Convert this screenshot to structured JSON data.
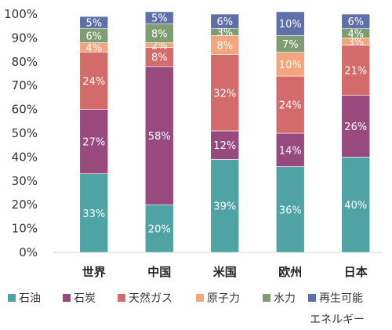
{
  "chart_data": {
    "type": "bar",
    "stacked": true,
    "percent": true,
    "categories": [
      "世界",
      "中国",
      "米国",
      "欧州",
      "日本"
    ],
    "ylim": [
      0,
      100
    ],
    "ytick_labels": [
      "0%",
      "10%",
      "20%",
      "30%",
      "40%",
      "50%",
      "60%",
      "70%",
      "80%",
      "90%",
      "100%"
    ],
    "grid": false,
    "legend_position": "bottom",
    "series": [
      {
        "name": "石油",
        "color": "#4fa3a5",
        "values": [
          33,
          20,
          39,
          36,
          40
        ],
        "labels": [
          "33%",
          "20%",
          "39%",
          "36%",
          "40%"
        ]
      },
      {
        "name": "石炭",
        "color": "#984a7e",
        "values": [
          27,
          58,
          12,
          14,
          26
        ],
        "labels": [
          "27%",
          "58%",
          "12%",
          "14%",
          "26%"
        ]
      },
      {
        "name": "天然ガス",
        "color": "#d46b6b",
        "values": [
          24,
          8,
          32,
          24,
          21
        ],
        "labels": [
          "24%",
          "8%",
          "32%",
          "24%",
          "21%"
        ]
      },
      {
        "name": "原子力",
        "color": "#f3a57d",
        "values": [
          4,
          2,
          8,
          10,
          3
        ],
        "labels": [
          "4%",
          "2%",
          "8%",
          "10%",
          "3%"
        ]
      },
      {
        "name": "水力",
        "color": "#7f9c72",
        "values": [
          6,
          8,
          3,
          7,
          4
        ],
        "labels": [
          "6%",
          "8%",
          "3%",
          "7%",
          "4%"
        ]
      },
      {
        "name": "再生可能\nエネルギー",
        "color": "#5f6fa8",
        "values": [
          5,
          5,
          6,
          10,
          6
        ],
        "labels": [
          "5%",
          "5%",
          "6%",
          "10%",
          "6%"
        ]
      }
    ]
  }
}
